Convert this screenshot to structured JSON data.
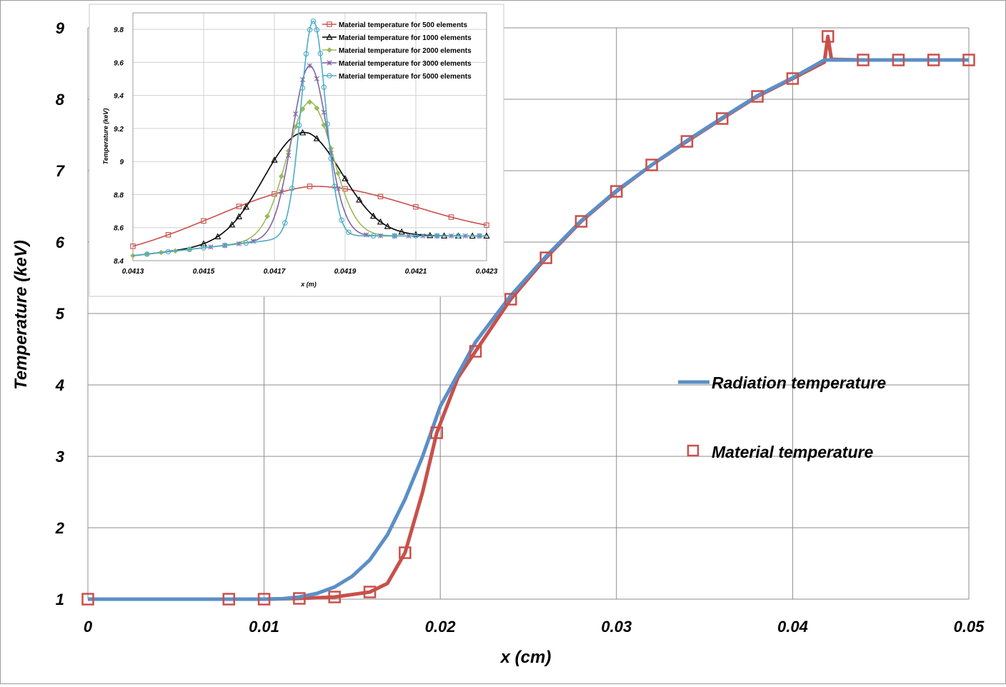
{
  "chart_data": [
    {
      "type": "line",
      "xlabel": "x (cm)",
      "ylabel": "Temperature (keV)",
      "xlim": [
        0,
        0.05
      ],
      "ylim": [
        1,
        9
      ],
      "x_ticks": [
        "0",
        "0.01",
        "0.02",
        "0.03",
        "0.04",
        "0.05"
      ],
      "y_ticks": [
        "1",
        "2",
        "3",
        "4",
        "5",
        "6",
        "7",
        "8",
        "9"
      ],
      "grid": true,
      "legend_position": "right",
      "series": [
        {
          "name": "Radiation temperature",
          "style": "line",
          "color": "#5b8fc7",
          "points": [
            [
              0,
              1
            ],
            [
              0.008,
              1
            ],
            [
              0.01,
              1
            ],
            [
              0.011,
              1.005
            ],
            [
              0.012,
              1.03
            ],
            [
              0.013,
              1.08
            ],
            [
              0.014,
              1.17
            ],
            [
              0.015,
              1.32
            ],
            [
              0.016,
              1.55
            ],
            [
              0.017,
              1.9
            ],
            [
              0.018,
              2.4
            ],
            [
              0.019,
              3.0
            ],
            [
              0.02,
              3.7
            ],
            [
              0.021,
              4.15
            ],
            [
              0.022,
              4.6
            ],
            [
              0.024,
              5.25
            ],
            [
              0.026,
              5.8
            ],
            [
              0.028,
              6.3
            ],
            [
              0.03,
              6.72
            ],
            [
              0.032,
              7.08
            ],
            [
              0.034,
              7.42
            ],
            [
              0.036,
              7.74
            ],
            [
              0.038,
              8.05
            ],
            [
              0.04,
              8.3
            ],
            [
              0.0418,
              8.55
            ],
            [
              0.044,
              8.55
            ],
            [
              0.046,
              8.55
            ],
            [
              0.048,
              8.55
            ],
            [
              0.05,
              8.55
            ]
          ]
        },
        {
          "name": "Material temperature",
          "style": "line+square",
          "color": "#c8504b",
          "points": [
            [
              0,
              1
            ],
            [
              0.008,
              1
            ],
            [
              0.01,
              1
            ],
            [
              0.012,
              1.01
            ],
            [
              0.014,
              1.03
            ],
            [
              0.016,
              1.1
            ],
            [
              0.017,
              1.22
            ],
            [
              0.018,
              1.65
            ],
            [
              0.019,
              2.5
            ],
            [
              0.0198,
              3.33
            ],
            [
              0.021,
              4.1
            ],
            [
              0.022,
              4.47
            ],
            [
              0.024,
              5.2
            ],
            [
              0.026,
              5.78
            ],
            [
              0.028,
              6.29
            ],
            [
              0.03,
              6.71
            ],
            [
              0.032,
              7.08
            ],
            [
              0.034,
              7.41
            ],
            [
              0.036,
              7.73
            ],
            [
              0.038,
              8.04
            ],
            [
              0.04,
              8.29
            ],
            [
              0.0418,
              8.52
            ],
            [
              0.042,
              8.88
            ],
            [
              0.0422,
              8.56
            ],
            [
              0.044,
              8.55
            ],
            [
              0.046,
              8.55
            ],
            [
              0.048,
              8.55
            ],
            [
              0.05,
              8.55
            ]
          ],
          "markers": [
            [
              0,
              1
            ],
            [
              0.008,
              1
            ],
            [
              0.01,
              1
            ],
            [
              0.012,
              1.01
            ],
            [
              0.014,
              1.03
            ],
            [
              0.016,
              1.1
            ],
            [
              0.018,
              1.65
            ],
            [
              0.0198,
              3.33
            ],
            [
              0.022,
              4.47
            ],
            [
              0.024,
              5.2
            ],
            [
              0.026,
              5.78
            ],
            [
              0.028,
              6.29
            ],
            [
              0.03,
              6.71
            ],
            [
              0.032,
              7.08
            ],
            [
              0.034,
              7.41
            ],
            [
              0.036,
              7.73
            ],
            [
              0.038,
              8.04
            ],
            [
              0.04,
              8.29
            ],
            [
              0.042,
              8.88
            ],
            [
              0.044,
              8.55
            ],
            [
              0.046,
              8.55
            ],
            [
              0.048,
              8.55
            ],
            [
              0.05,
              8.55
            ]
          ]
        }
      ]
    },
    {
      "type": "line",
      "xlabel": "x (m)",
      "ylabel": "Temperature (keV)",
      "xlim": [
        0.0413,
        0.0423
      ],
      "ylim": [
        8.4,
        9.9
      ],
      "x_ticks": [
        "0.0413",
        "0.0415",
        "0.0417",
        "0.0419",
        "0.0421",
        "0.0423"
      ],
      "y_ticks": [
        "8.4",
        "8.6",
        "8.8",
        "9",
        "9.2",
        "9.4",
        "9.6",
        "9.8"
      ],
      "grid": true,
      "legend_position": "top-right",
      "series": [
        {
          "name": "Material temperature for 500 elements",
          "color": "#c8504b",
          "marker": "square",
          "peak": [
            0.04181,
            8.85
          ],
          "width": 0.00028,
          "markers": [
            0.0413,
            0.0414,
            0.0415,
            0.0416,
            0.0417,
            0.0418,
            0.0419,
            0.042,
            0.0421,
            0.0422,
            0.0423
          ]
        },
        {
          "name": "Material temperature for 1000 elements",
          "color": "#000000",
          "marker": "triangle",
          "peak": [
            0.04178,
            9.18
          ],
          "width": 0.00011,
          "markers": [
            0.0416,
            0.0417,
            0.04178,
            0.04182,
            0.0419,
            0.042
          ]
        },
        {
          "name": "Material temperature for 2000 elements",
          "color": "#9bbb59",
          "marker": "diamond",
          "peak": [
            0.0418,
            9.36
          ],
          "width": 6.5e-05,
          "markers": [
            0.04168,
            0.04172,
            0.04174,
            0.04176,
            0.04178,
            0.0418,
            0.04182,
            0.04184,
            0.04186,
            0.04188
          ]
        },
        {
          "name": "Material temperature for 3000 elements",
          "color": "#8064a2",
          "marker": "star",
          "peak": [
            0.0418,
            9.58
          ],
          "width": 5e-05,
          "markers": [
            0.04172,
            0.04174,
            0.04176,
            0.04178,
            0.0418,
            0.04182,
            0.04184,
            0.04186,
            0.04188
          ]
        },
        {
          "name": "Material temperature for 5000 elements",
          "color": "#4bacc6",
          "marker": "circle",
          "peak": [
            0.04181,
            9.85
          ],
          "width": 3.5e-05,
          "markers": [
            0.04173,
            0.04175,
            0.04177,
            0.04178,
            0.04179,
            0.0418,
            0.04181,
            0.04182,
            0.04183,
            0.04184,
            0.04185,
            0.04186,
            0.04187,
            0.04189,
            0.04191
          ]
        }
      ]
    }
  ]
}
